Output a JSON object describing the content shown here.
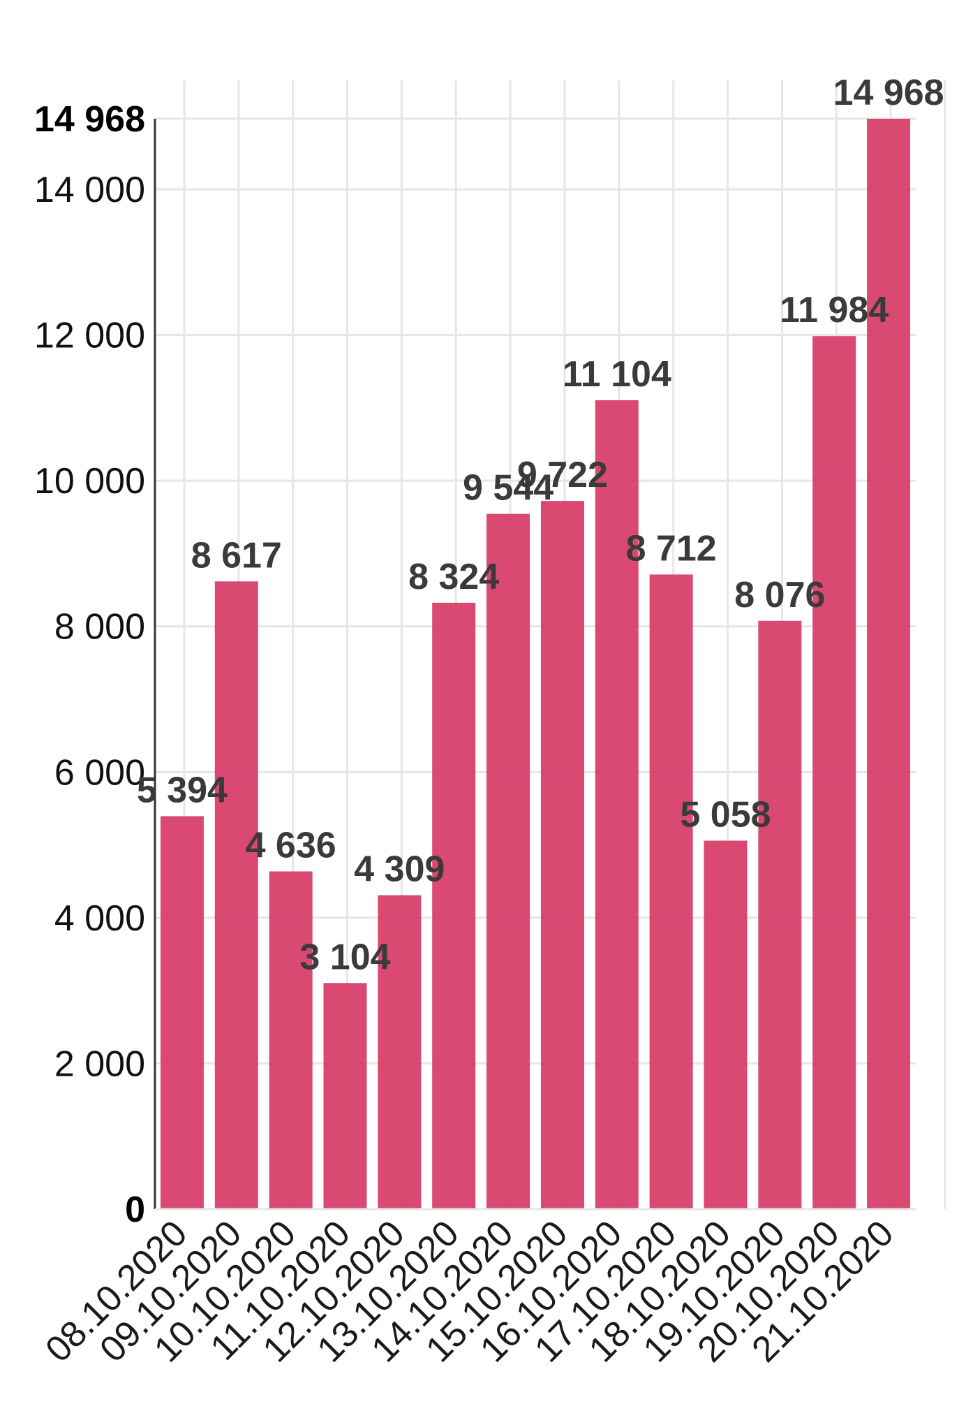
{
  "chart_data": {
    "type": "bar",
    "categories": [
      "08.10.2020",
      "09.10.2020",
      "10.10.2020",
      "11.10.2020",
      "12.10.2020",
      "13.10.2020",
      "14.10.2020",
      "15.10.2020",
      "16.10.2020",
      "17.10.2020",
      "18.10.2020",
      "19.10.2020",
      "20.10.2020",
      "21.10.2020"
    ],
    "values": [
      5394,
      8617,
      4636,
      3104,
      4309,
      8324,
      9544,
      9722,
      11104,
      8712,
      5058,
      8076,
      11984,
      14968
    ],
    "value_labels": [
      "5 394",
      "8 617",
      "4 636",
      "3 104",
      "4 309",
      "8 324",
      "9 544",
      "9 722",
      "11 104",
      "8 712",
      "5 058",
      "8 076",
      "11 984",
      "14 968"
    ],
    "ylim": [
      0,
      14968
    ],
    "yticks": [
      {
        "value": 0,
        "label": "0",
        "bold": true
      },
      {
        "value": 2000,
        "label": "2 000",
        "bold": false
      },
      {
        "value": 4000,
        "label": "4 000",
        "bold": false
      },
      {
        "value": 6000,
        "label": "6 000",
        "bold": false
      },
      {
        "value": 8000,
        "label": "8 000",
        "bold": false
      },
      {
        "value": 10000,
        "label": "10 000",
        "bold": false
      },
      {
        "value": 12000,
        "label": "12 000",
        "bold": false
      },
      {
        "value": 14000,
        "label": "14 000",
        "bold": false
      },
      {
        "value": 14968,
        "label": "14 968",
        "bold": true
      }
    ],
    "grid": true,
    "bar_color": "#d63a66",
    "title": "",
    "xlabel": "",
    "ylabel": ""
  }
}
